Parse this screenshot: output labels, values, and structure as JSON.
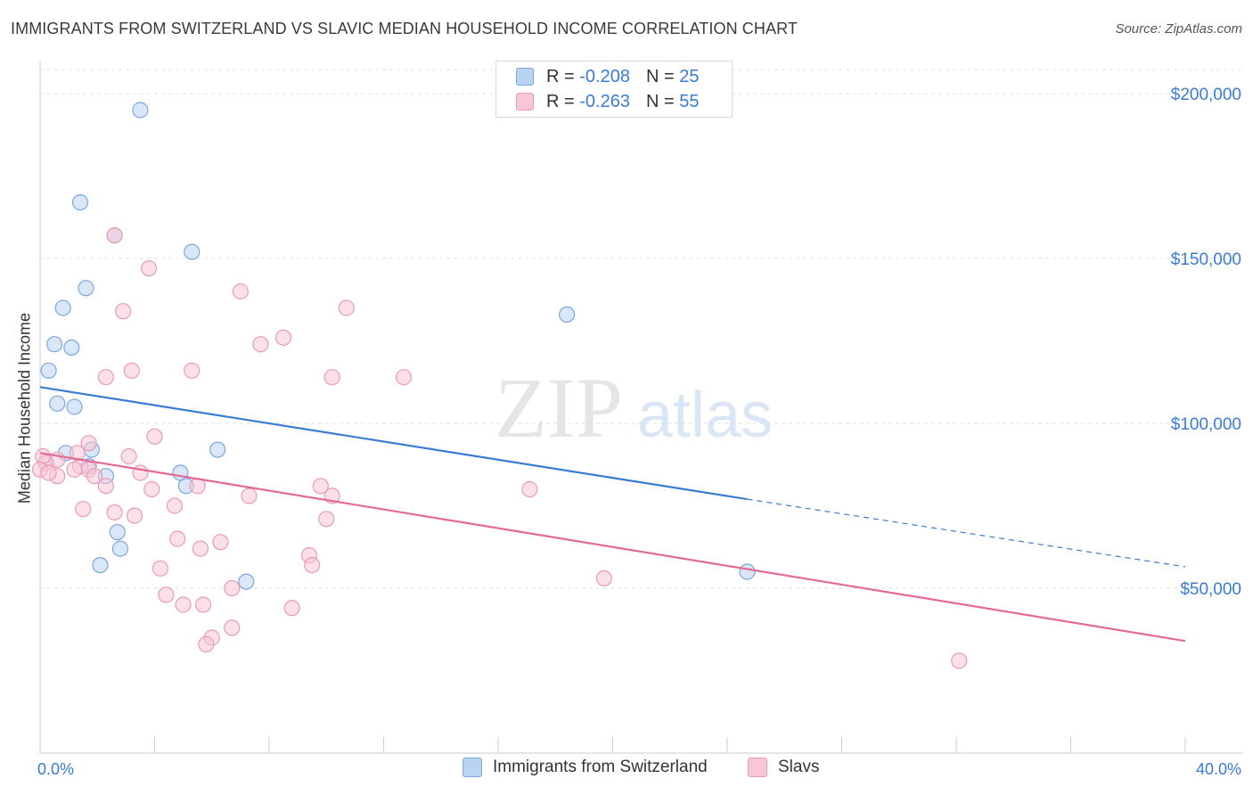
{
  "header": {
    "title": "IMMIGRANTS FROM SWITZERLAND VS SLAVIC MEDIAN HOUSEHOLD INCOME CORRELATION CHART",
    "source": "Source: ZipAtlas.com"
  },
  "legend_top": {
    "rows": [
      {
        "r_label": "R =",
        "r_value": "-0.208",
        "n_label": "N =",
        "n_value": "25"
      },
      {
        "r_label": "R =",
        "r_value": "-0.263",
        "n_label": "N =",
        "n_value": "55"
      }
    ]
  },
  "legend_bottom": {
    "items": [
      "Immigrants from Switzerland",
      "Slavs"
    ]
  },
  "watermark": {
    "zip": "ZIP",
    "atlas": "atlas"
  },
  "colors": {
    "blue": "#3a7bd5",
    "blue_fill": "#b9d3f3",
    "blue_stroke": "#7aa7e0",
    "pink": "#e36a96",
    "pink_fill": "#f8c7d6",
    "pink_stroke": "#eb9ab5",
    "axis_label": "#3a7bd5",
    "grid": "#dddddd"
  },
  "chart_data": {
    "type": "scatter",
    "title": "IMMIGRANTS FROM SWITZERLAND VS SLAVIC MEDIAN HOUSEHOLD INCOME CORRELATION CHART",
    "xlabel": "",
    "ylabel": "Median Household Income",
    "xlim": [
      0,
      40
    ],
    "ylim": [
      0,
      210000
    ],
    "x_tick_labels": [
      "0.0%",
      "40.0%"
    ],
    "y_ticks": [
      50000,
      100000,
      150000,
      200000
    ],
    "y_tick_labels": [
      "$50,000",
      "$100,000",
      "$150,000",
      "$200,000"
    ],
    "grid": true,
    "legend_position": "top-center",
    "series": [
      {
        "name": "Immigrants from Switzerland",
        "color": "blue",
        "points": [
          [
            3.5,
            195000
          ],
          [
            1.4,
            167000
          ],
          [
            2.6,
            157000
          ],
          [
            5.3,
            152000
          ],
          [
            1.6,
            141000
          ],
          [
            0.8,
            135000
          ],
          [
            18.4,
            133000
          ],
          [
            0.5,
            124000
          ],
          [
            1.1,
            123000
          ],
          [
            0.3,
            116000
          ],
          [
            0.6,
            106000
          ],
          [
            1.2,
            105000
          ],
          [
            6.2,
            92000
          ],
          [
            1.8,
            92000
          ],
          [
            0.9,
            91000
          ],
          [
            0.2,
            88000
          ],
          [
            1.7,
            87000
          ],
          [
            4.9,
            85000
          ],
          [
            2.3,
            84000
          ],
          [
            5.1,
            81000
          ],
          [
            2.7,
            67000
          ],
          [
            2.8,
            62000
          ],
          [
            2.1,
            57000
          ],
          [
            7.2,
            52000
          ],
          [
            24.7,
            55000
          ]
        ],
        "trend": {
          "x0": 0,
          "y0": 111000,
          "x1": 24.7,
          "y1": 77000,
          "dashed_to_x": 40,
          "dashed_to_y": 56500
        }
      },
      {
        "name": "Slavs",
        "color": "pink",
        "points": [
          [
            2.6,
            157000
          ],
          [
            3.8,
            147000
          ],
          [
            7.0,
            140000
          ],
          [
            10.7,
            135000
          ],
          [
            2.9,
            134000
          ],
          [
            8.5,
            126000
          ],
          [
            7.7,
            124000
          ],
          [
            3.2,
            116000
          ],
          [
            5.3,
            116000
          ],
          [
            2.3,
            114000
          ],
          [
            10.2,
            114000
          ],
          [
            12.7,
            114000
          ],
          [
            4.0,
            96000
          ],
          [
            1.7,
            94000
          ],
          [
            1.3,
            91000
          ],
          [
            3.1,
            90000
          ],
          [
            0.6,
            89000
          ],
          [
            0.2,
            88000
          ],
          [
            1.4,
            87000
          ],
          [
            1.7,
            86000
          ],
          [
            1.2,
            86000
          ],
          [
            3.5,
            85000
          ],
          [
            0.6,
            84000
          ],
          [
            1.9,
            84000
          ],
          [
            2.3,
            81000
          ],
          [
            9.8,
            81000
          ],
          [
            5.5,
            81000
          ],
          [
            3.9,
            80000
          ],
          [
            17.1,
            80000
          ],
          [
            7.3,
            78000
          ],
          [
            10.2,
            78000
          ],
          [
            1.5,
            74000
          ],
          [
            4.7,
            75000
          ],
          [
            2.6,
            73000
          ],
          [
            3.3,
            72000
          ],
          [
            10.0,
            71000
          ],
          [
            4.8,
            65000
          ],
          [
            6.3,
            64000
          ],
          [
            5.6,
            62000
          ],
          [
            9.4,
            60000
          ],
          [
            9.5,
            57000
          ],
          [
            4.2,
            56000
          ],
          [
            19.7,
            53000
          ],
          [
            6.7,
            50000
          ],
          [
            4.4,
            48000
          ],
          [
            5.0,
            45000
          ],
          [
            5.7,
            45000
          ],
          [
            8.8,
            44000
          ],
          [
            6.7,
            38000
          ],
          [
            6.0,
            35000
          ],
          [
            5.8,
            33000
          ],
          [
            32.1,
            28000
          ],
          [
            0.1,
            90000
          ],
          [
            0.0,
            86000
          ],
          [
            0.3,
            85000
          ]
        ],
        "trend": {
          "x0": 0,
          "y0": 91000,
          "x1": 40,
          "y1": 34000
        }
      }
    ]
  }
}
